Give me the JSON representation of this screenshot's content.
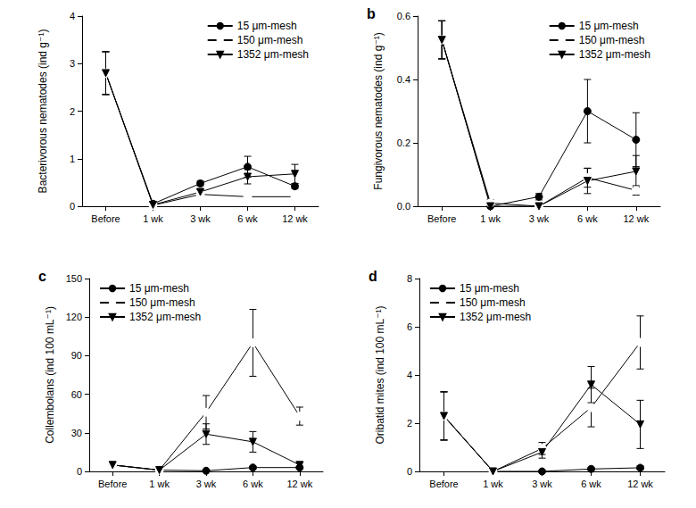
{
  "chart_data": [
    {
      "type": "line",
      "ylabel": "Bacterivorous nematodes (ind g⁻¹)",
      "categories": [
        "Before",
        "1 wk",
        "3 wk",
        "6 wk",
        "12 wk"
      ],
      "ylim": [
        0,
        4
      ],
      "yticks": [
        0,
        1,
        2,
        3,
        4
      ],
      "grid": false,
      "legend": "upper right",
      "series": [
        {
          "name": "15 μm-mesh",
          "color": "#000000",
          "marker": "circle",
          "values": [
            2.8,
            0.05,
            0.48,
            0.83,
            0.42
          ],
          "errors": [
            0.45,
            0.03,
            0.05,
            0.22,
            0.05
          ]
        },
        {
          "name": "150 μm-mesh",
          "color": "#000000",
          "marker": "circle-open",
          "values": [
            2.8,
            0.02,
            0.25,
            0.2,
            0.2
          ],
          "errors": [
            0.45,
            0.02,
            0.04,
            0.02,
            0.03
          ]
        },
        {
          "name": "1352 μm-mesh",
          "color": "#000000",
          "marker": "triangle-down",
          "values": [
            2.8,
            0.03,
            0.3,
            0.62,
            0.68
          ],
          "errors": [
            0.45,
            0.02,
            0.05,
            0.15,
            0.2
          ]
        }
      ]
    },
    {
      "type": "line",
      "title": "b",
      "ylabel": "Fungivorous nematodes (ind g⁻¹)",
      "categories": [
        "Before",
        "1 wk",
        "3 wk",
        "6 wk",
        "12 wk"
      ],
      "ylim": [
        0,
        0.6
      ],
      "yticks": [
        {
          "value": 0,
          "label": "0.0"
        },
        0.2,
        0.4,
        0.6
      ],
      "grid": false,
      "legend": "upper right",
      "series": [
        {
          "name": "15 μm-mesh",
          "color": "#000000",
          "marker": "circle",
          "values": [
            0.525,
            0,
            0.03,
            0.3,
            0.21
          ],
          "errors": [
            0.06,
            0.005,
            0.01,
            0.1,
            0.085
          ]
        },
        {
          "name": "150 μm-mesh",
          "color": "#000000",
          "marker": "circle-open",
          "values": [
            0.525,
            0.01,
            0,
            0.09,
            0.05
          ],
          "errors": [
            0.06,
            0.01,
            0.003,
            0.03,
            0.015
          ]
        },
        {
          "name": "1352 μm-mesh",
          "color": "#000000",
          "marker": "triangle-down",
          "values": [
            0.525,
            0,
            0,
            0.08,
            0.11
          ],
          "errors": [
            0.06,
            0.003,
            0.003,
            0.04,
            0.05
          ]
        }
      ]
    },
    {
      "type": "line",
      "title": "c",
      "ylabel": "Collembolans (ind 100 mL⁻¹)",
      "categories": [
        "Before",
        "1 wk",
        "3 wk",
        "6 wk",
        "12 wk"
      ],
      "ylim": [
        0,
        150
      ],
      "yticks": [
        0,
        30,
        60,
        90,
        120,
        150
      ],
      "grid": false,
      "legend": "upper left",
      "series": [
        {
          "name": "15 μm-mesh",
          "color": "#000000",
          "marker": "circle",
          "values": [
            5,
            1,
            0.5,
            3,
            3
          ],
          "errors": [
            1,
            0.5,
            0.3,
            1,
            1
          ]
        },
        {
          "name": "150 μm-mesh",
          "color": "#000000",
          "marker": "circle-open",
          "values": [
            5,
            1,
            46,
            100,
            43
          ],
          "errors": [
            1,
            0.5,
            13,
            26,
            7
          ]
        },
        {
          "name": "1352 μm-mesh",
          "color": "#000000",
          "marker": "triangle-down",
          "values": [
            5,
            1,
            29,
            23,
            5
          ],
          "errors": [
            1,
            0.5,
            8,
            8,
            1.5
          ]
        }
      ]
    },
    {
      "type": "line",
      "title": "d",
      "ylabel": "Oribatid mites (ind 100 mL⁻¹)",
      "categories": [
        "Before",
        "1 wk",
        "3 wk",
        "6 wk",
        "12 wk"
      ],
      "ylim": [
        0,
        8
      ],
      "yticks": [
        0,
        2,
        4,
        6,
        8
      ],
      "grid": false,
      "legend": "upper left",
      "series": [
        {
          "name": "15 μm-mesh",
          "color": "#000000",
          "marker": "circle",
          "values": [
            2.3,
            0,
            0,
            0.1,
            0.15
          ],
          "errors": [
            1,
            0.02,
            0.02,
            0.05,
            0.08
          ]
        },
        {
          "name": "150 μm-mesh",
          "color": "#000000",
          "marker": "circle-open",
          "values": [
            2.3,
            0,
            0.95,
            2.65,
            5.35
          ],
          "errors": [
            1,
            0.02,
            0.25,
            0.8,
            1.1
          ]
        },
        {
          "name": "1352 μm-mesh",
          "color": "#000000",
          "marker": "triangle-down",
          "values": [
            2.3,
            0,
            0.8,
            3.6,
            1.95
          ],
          "errors": [
            1,
            0.02,
            0.25,
            0.75,
            1.0
          ]
        }
      ]
    }
  ]
}
